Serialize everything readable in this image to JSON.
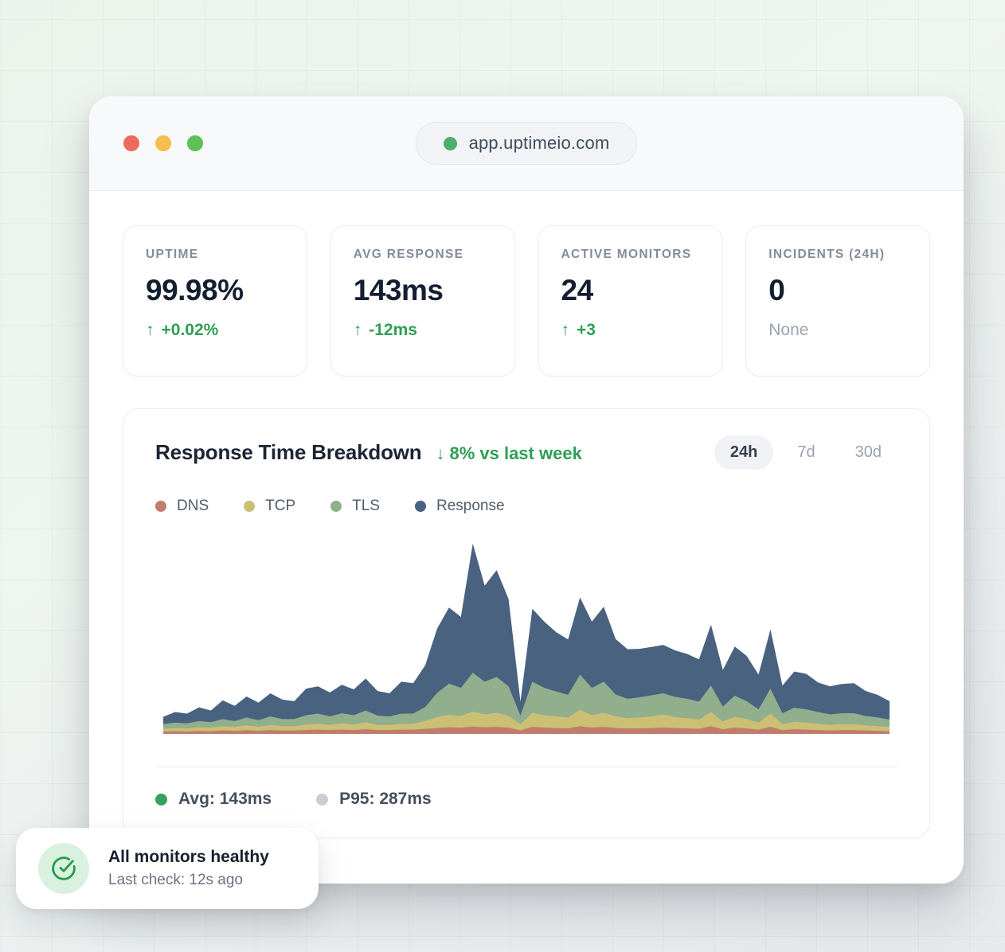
{
  "browser": {
    "url": "app.uptimeio.com",
    "secure_dot_color": "#4caf6e",
    "traffic_lights": [
      {
        "name": "close",
        "color": "#ed6a5e"
      },
      {
        "name": "minimize",
        "color": "#f4bd4e"
      },
      {
        "name": "zoom",
        "color": "#5cc157"
      }
    ]
  },
  "stats": [
    {
      "label": "UPTIME",
      "value": "99.98%",
      "arrow": "↑",
      "delta": "+0.02%",
      "tone": "positive"
    },
    {
      "label": "AVG RESPONSE",
      "value": "143ms",
      "arrow": "↑",
      "delta": "-12ms",
      "tone": "positive"
    },
    {
      "label": "ACTIVE MONITORS",
      "value": "24",
      "arrow": "↑",
      "delta": "+3",
      "tone": "positive"
    },
    {
      "label": "INCIDENTS (24H)",
      "value": "0",
      "arrow": "",
      "delta": "None",
      "tone": "muted"
    }
  ],
  "chart_card": {
    "title": "Response Time Breakdown",
    "trend_arrow": "↓",
    "trend_text": "8% vs last week",
    "ranges": [
      {
        "label": "24h",
        "active": true
      },
      {
        "label": "7d",
        "active": false
      },
      {
        "label": "30d",
        "active": false
      }
    ],
    "footer": [
      {
        "label": "Avg: 143ms",
        "dot_color": "#35a35c"
      },
      {
        "label": "P95: 287ms",
        "dot_color": "#c9cfd6"
      }
    ]
  },
  "chart_data": {
    "type": "area",
    "stacked": true,
    "unit": "ms",
    "x_range_label": "24h",
    "ylim": [
      0,
      500
    ],
    "grid": false,
    "legend_position": "top-left",
    "avg_ms": 143,
    "p95_ms": 287,
    "series": [
      {
        "name": "DNS",
        "color": "#c07c6c",
        "values": [
          6,
          7,
          6,
          8,
          7,
          9,
          8,
          10,
          8,
          10,
          9,
          9,
          10,
          11,
          10,
          11,
          10,
          12,
          10,
          10,
          11,
          11,
          13,
          15,
          17,
          16,
          19,
          17,
          18,
          16,
          9,
          18,
          16,
          15,
          14,
          20,
          16,
          18,
          15,
          14,
          14,
          15,
          16,
          15,
          14,
          13,
          20,
          12,
          16,
          14,
          11,
          18,
          10,
          12,
          11,
          10,
          9,
          10,
          10,
          9,
          8,
          7
        ]
      },
      {
        "name": "TCP",
        "color": "#cbbf74",
        "values": [
          7,
          8,
          8,
          9,
          9,
          11,
          10,
          12,
          10,
          13,
          11,
          11,
          14,
          15,
          13,
          16,
          14,
          18,
          13,
          13,
          15,
          15,
          20,
          28,
          32,
          30,
          38,
          33,
          36,
          30,
          16,
          36,
          32,
          30,
          28,
          42,
          32,
          36,
          30,
          26,
          28,
          30,
          34,
          28,
          26,
          24,
          36,
          20,
          28,
          24,
          18,
          34,
          15,
          19,
          18,
          16,
          14,
          15,
          15,
          13,
          12,
          11
        ]
      },
      {
        "name": "TLS",
        "color": "#91ae8d",
        "values": [
          12,
          14,
          13,
          16,
          14,
          18,
          15,
          20,
          17,
          22,
          18,
          18,
          24,
          26,
          22,
          26,
          24,
          30,
          24,
          22,
          26,
          26,
          36,
          62,
          80,
          72,
          100,
          84,
          92,
          76,
          22,
          80,
          70,
          64,
          58,
          90,
          70,
          80,
          56,
          50,
          52,
          54,
          54,
          52,
          50,
          46,
          68,
          38,
          54,
          46,
          34,
          64,
          28,
          36,
          34,
          30,
          27,
          28,
          28,
          24,
          22,
          19
        ]
      },
      {
        "name": "Response",
        "color": "#48627f",
        "values": [
          19,
          27,
          25,
          35,
          30,
          48,
          39,
          54,
          45,
          59,
          50,
          46,
          68,
          70,
          61,
          73,
          66,
          82,
          63,
          59,
          82,
          78,
          107,
          165,
          195,
          182,
          331,
          246,
          274,
          224,
          36,
          187,
          170,
          152,
          142,
          198,
          170,
          192,
          142,
          127,
          124,
          124,
          124,
          119,
          115,
          108,
          156,
          94,
          126,
          116,
          89,
          152,
          71,
          93,
          91,
          76,
          72,
          75,
          77,
          64,
          58,
          47
        ]
      }
    ]
  },
  "toast": {
    "title": "All monitors healthy",
    "subtitle": "Last check: 12s ago"
  },
  "colors": {
    "accent_green": "#2f9e55",
    "ink": "#141f31",
    "muted": "#9aa4b2"
  }
}
